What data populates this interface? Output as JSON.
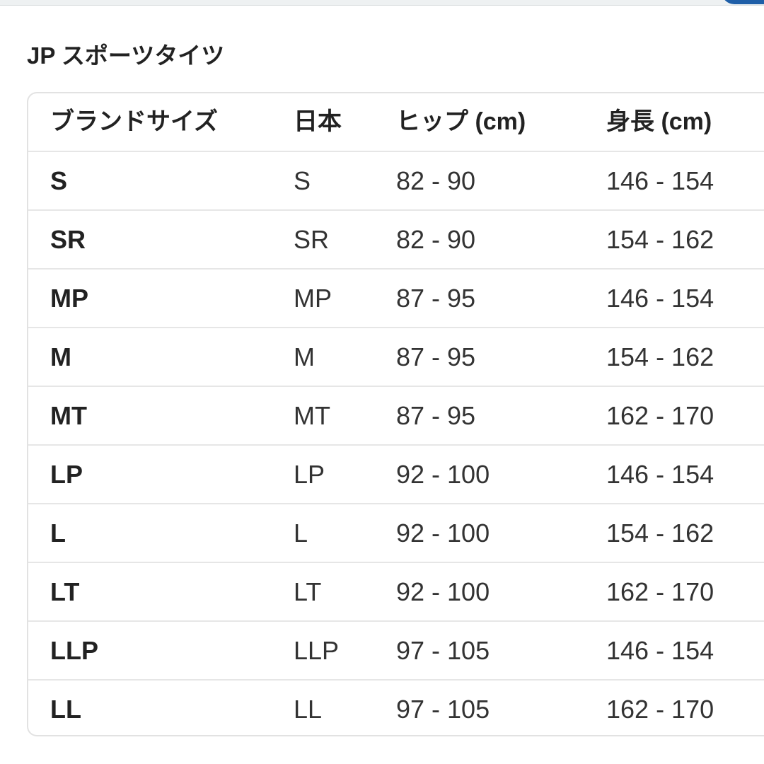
{
  "title": "JP スポーツタイツ",
  "table": {
    "headers": [
      "ブランドサイズ",
      "日本",
      "ヒップ (cm)",
      "身長 (cm)"
    ],
    "rows": [
      [
        "S",
        "S",
        "82 - 90",
        "146 - 154"
      ],
      [
        "SR",
        "SR",
        "82 - 90",
        "154 - 162"
      ],
      [
        "MP",
        "MP",
        "87 - 95",
        "146 - 154"
      ],
      [
        "M",
        "M",
        "87 - 95",
        "154 - 162"
      ],
      [
        "MT",
        "MT",
        "87 - 95",
        "162 - 170"
      ],
      [
        "LP",
        "LP",
        "92 - 100",
        "146 - 154"
      ],
      [
        "L",
        "L",
        "92 - 100",
        "154 - 162"
      ],
      [
        "LT",
        "LT",
        "92 - 100",
        "162 - 170"
      ],
      [
        "LLP",
        "LLP",
        "97 - 105",
        "146 - 154"
      ],
      [
        "LL",
        "LL",
        "97 - 105",
        "162 - 170"
      ]
    ]
  }
}
